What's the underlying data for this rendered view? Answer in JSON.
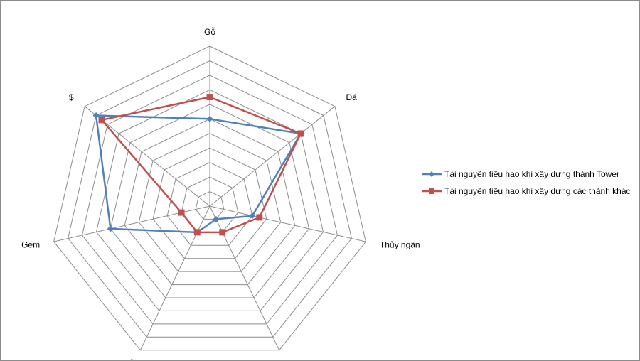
{
  "chart_data": {
    "type": "radar",
    "axes": [
      "Gỗ",
      "Đá",
      "Thủy ngân",
      "Lưu Huỳnh",
      "Pha lê đỏ",
      "Gem",
      "$"
    ],
    "rmax": 11,
    "gridlines": 11,
    "grid": true,
    "legend_position": "right",
    "series": [
      {
        "name": "Tài nguyên tiêu hao khi xây dựng thành Tower",
        "color": "#4f81bd",
        "marker": "diamond",
        "values": [
          6,
          8,
          3,
          1,
          2,
          7,
          10
        ]
      },
      {
        "name": "Tài nguyên tiêu hao khi xây dựng các thành khác",
        "color": "#c0504d",
        "marker": "square",
        "values": [
          7.5,
          8,
          3.5,
          2,
          2,
          2,
          9.5
        ]
      }
    ]
  }
}
